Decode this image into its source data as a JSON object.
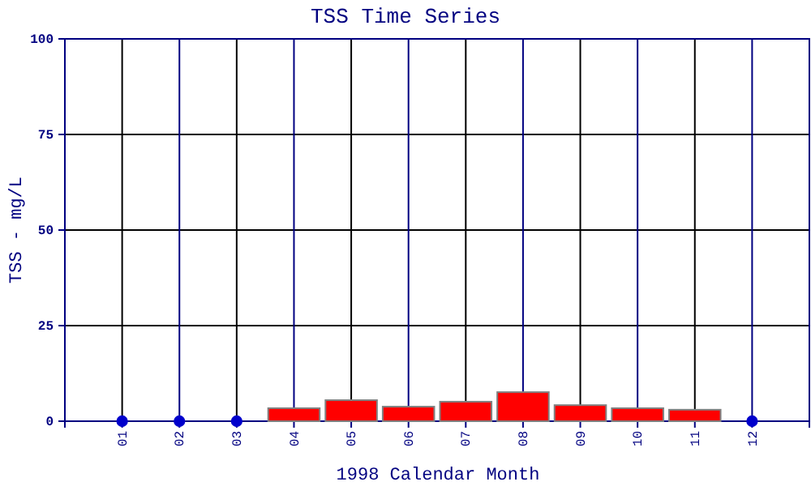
{
  "chart_data": {
    "type": "bar",
    "title": "TSS Time Series",
    "xlabel": "1998 Calendar Month",
    "ylabel": "TSS - mg/L",
    "categories": [
      "01",
      "02",
      "03",
      "04",
      "05",
      "06",
      "07",
      "08",
      "09",
      "10",
      "11",
      "12"
    ],
    "series": [
      {
        "color": "#ff0000",
        "values": [
          null,
          null,
          null,
          3.4,
          5.5,
          3.8,
          5.1,
          7.6,
          4.2,
          3.4,
          3.0,
          null
        ]
      },
      {
        "type": "scatter",
        "color": "#0000cc",
        "values": [
          0,
          0,
          0,
          null,
          null,
          null,
          null,
          null,
          null,
          null,
          null,
          0
        ]
      }
    ],
    "ylim": [
      0,
      100
    ],
    "yticks": [
      0,
      25,
      50,
      75,
      100
    ],
    "grid": true,
    "marker": "circle"
  }
}
